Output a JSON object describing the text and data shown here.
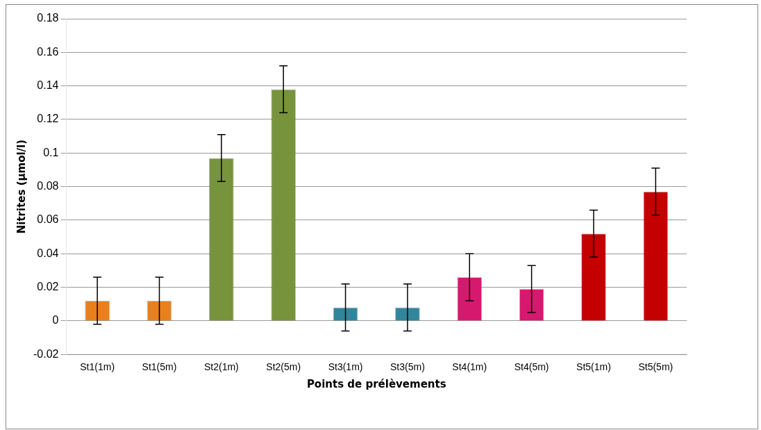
{
  "chart_data": {
    "type": "bar",
    "xlabel": "Points de prélèvements",
    "ylabel": "Nitrites (µmol/l)",
    "categories": [
      "St1(1m)",
      "St1(5m)",
      "St2(1m)",
      "St2(5m)",
      "St3(1m)",
      "St3(5m)",
      "St4(1m)",
      "St4(5m)",
      "St5(1m)",
      "St5(5m)"
    ],
    "values": [
      0.012,
      0.012,
      0.097,
      0.138,
      0.008,
      0.008,
      0.026,
      0.019,
      0.052,
      0.077
    ],
    "errors": [
      0.014,
      0.014,
      0.014,
      0.014,
      0.014,
      0.014,
      0.014,
      0.014,
      0.014,
      0.014
    ],
    "colors": [
      "#e8801e",
      "#e8801e",
      "#77933c",
      "#77933c",
      "#31869c",
      "#31869c",
      "#d6186e",
      "#d6186e",
      "#c40000",
      "#c40000"
    ],
    "ylim": [
      -0.02,
      0.18
    ],
    "yticks": [
      -0.02,
      0,
      0.02,
      0.04,
      0.06,
      0.08,
      0.1,
      0.12,
      0.14,
      0.16,
      0.18
    ],
    "grid": "y",
    "legend": false
  }
}
